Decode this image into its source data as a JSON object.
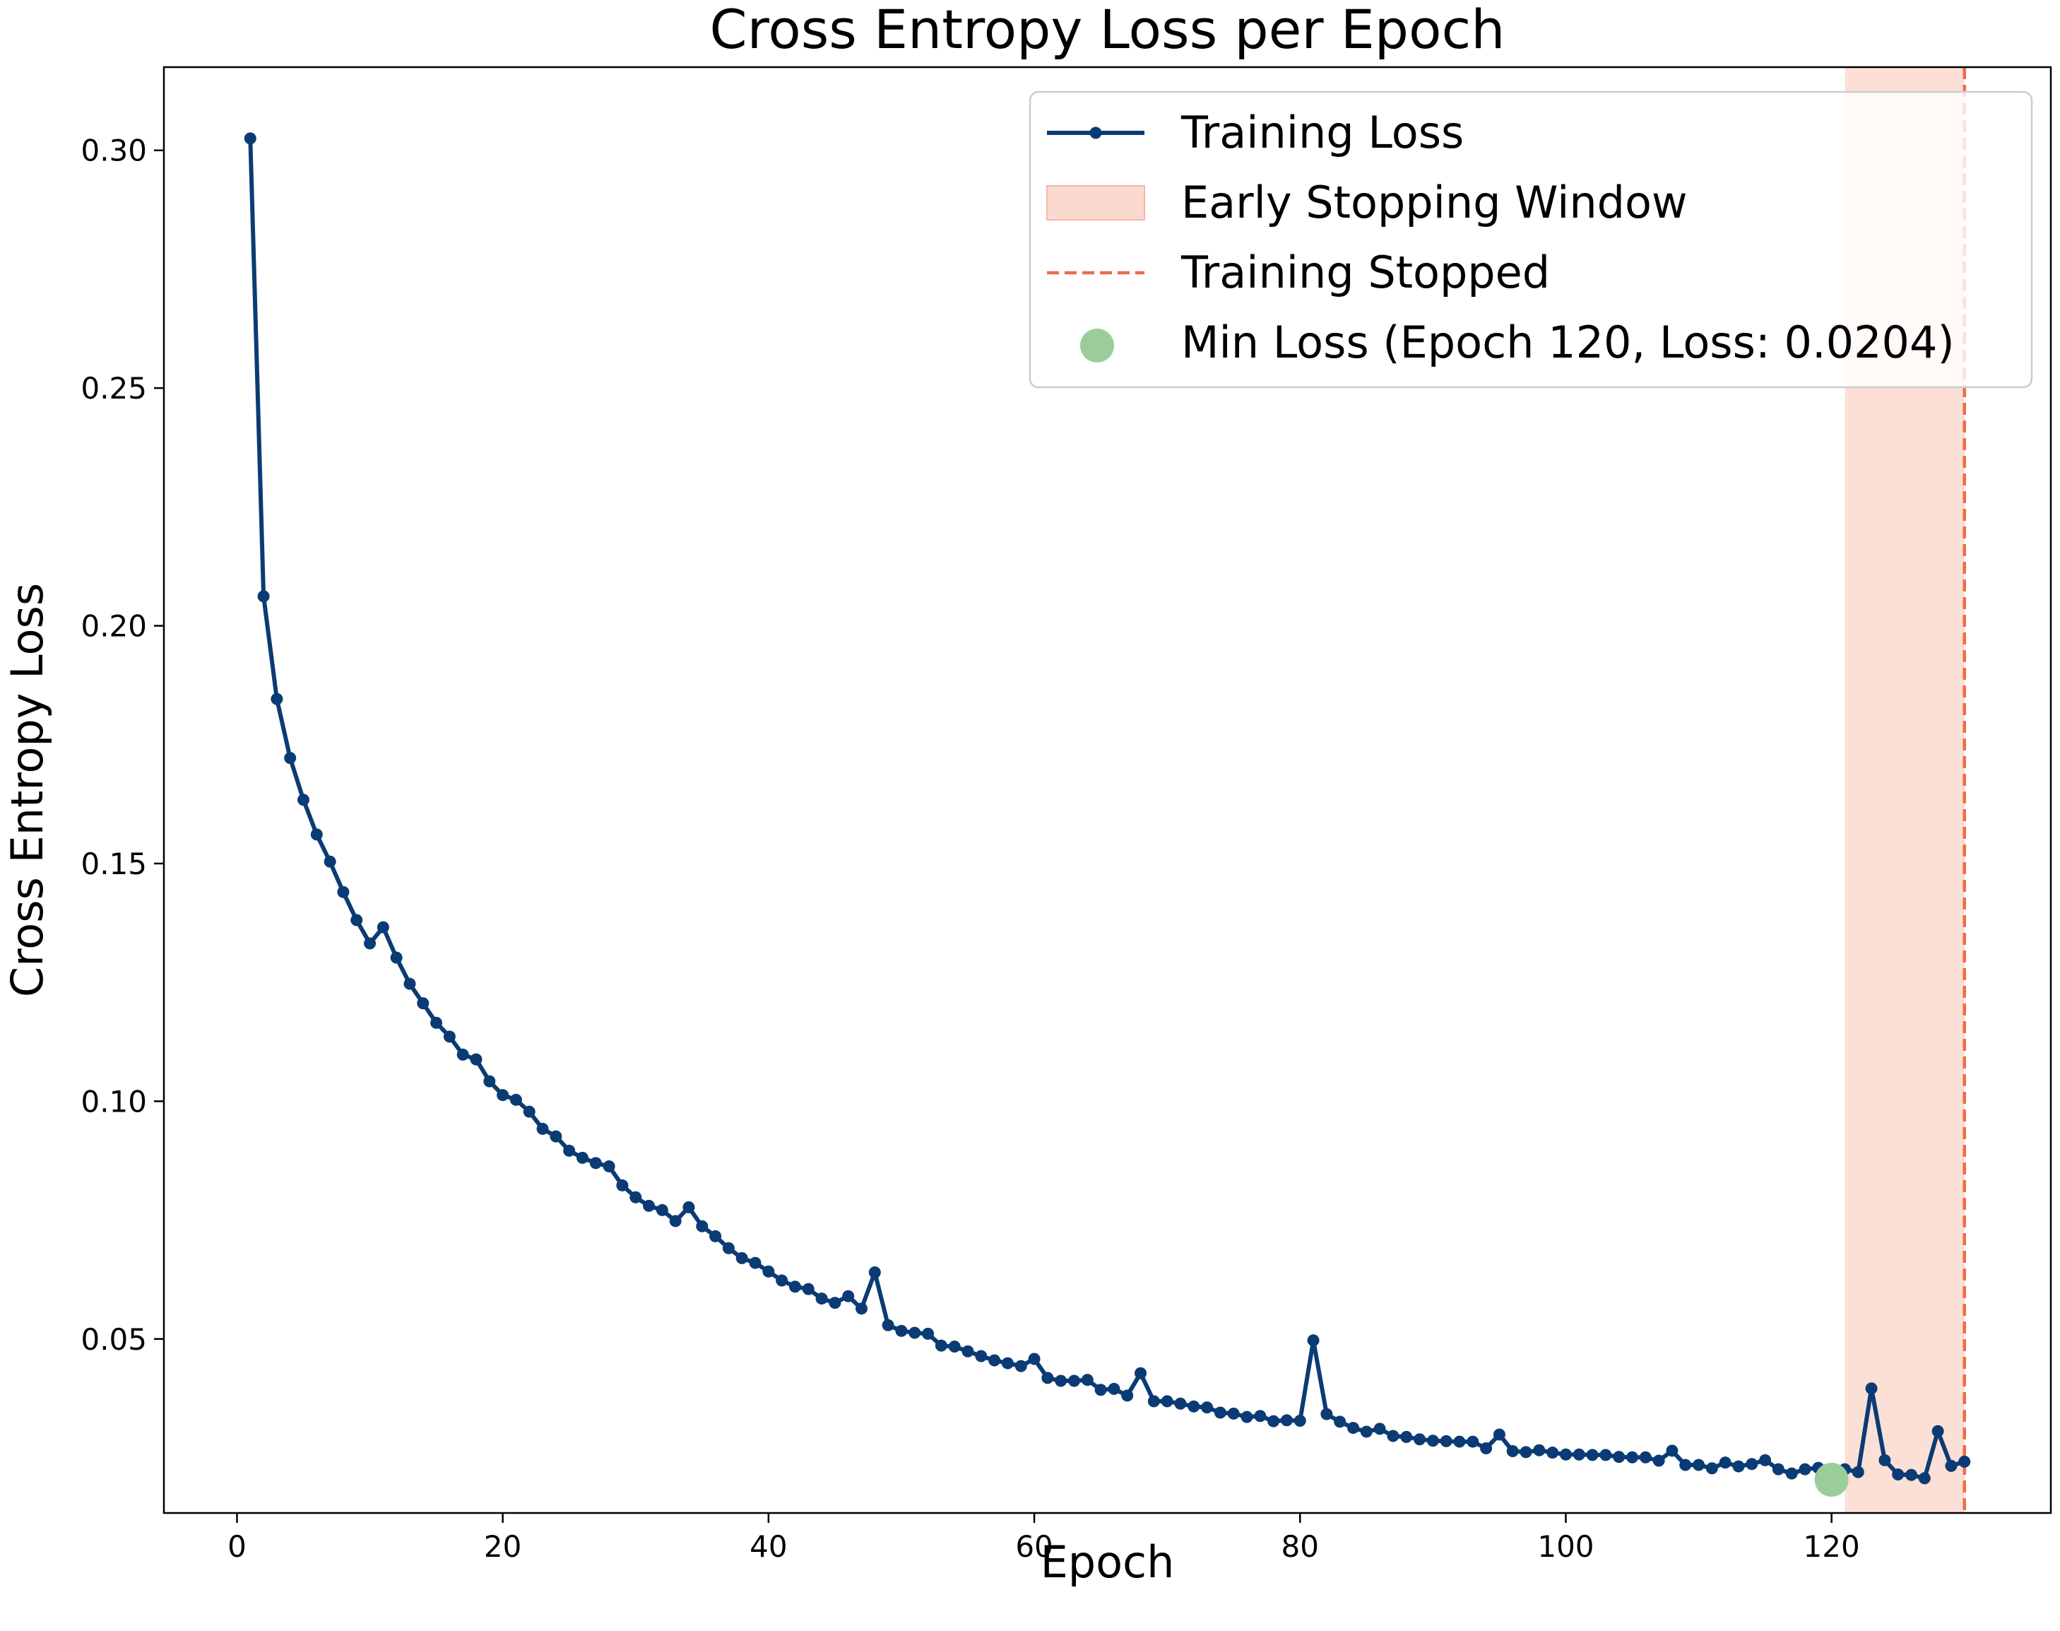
{
  "chart_data": {
    "type": "line",
    "title": "Cross Entropy Loss per Epoch",
    "xlabel": "Epoch",
    "ylabel": "Cross Entropy Loss",
    "xlim": [
      -5.5,
      136.5
    ],
    "ylim": [
      0.0134,
      0.3175
    ],
    "xticks": [
      0,
      20,
      40,
      60,
      80,
      100,
      120
    ],
    "xtick_labels": [
      "0",
      "20",
      "40",
      "60",
      "80",
      "100",
      "120"
    ],
    "yticks": [
      0.05,
      0.1,
      0.15,
      0.2,
      0.25,
      0.3
    ],
    "ytick_labels": [
      "0.05",
      "0.10",
      "0.15",
      "0.20",
      "0.25",
      "0.30"
    ],
    "grid": false,
    "legend_position": "top-right",
    "series": [
      {
        "name": "Training Loss",
        "color": "#0b3b74",
        "x": [
          1,
          2,
          3,
          4,
          5,
          6,
          7,
          8,
          9,
          10,
          11,
          12,
          13,
          14,
          15,
          16,
          17,
          18,
          19,
          20,
          21,
          22,
          23,
          24,
          25,
          26,
          27,
          28,
          29,
          30,
          31,
          32,
          33,
          34,
          35,
          36,
          37,
          38,
          39,
          40,
          41,
          42,
          43,
          44,
          45,
          46,
          47,
          48,
          49,
          50,
          51,
          52,
          53,
          54,
          55,
          56,
          57,
          58,
          59,
          60,
          61,
          62,
          63,
          64,
          65,
          66,
          67,
          68,
          69,
          70,
          71,
          72,
          73,
          74,
          75,
          76,
          77,
          78,
          79,
          80,
          81,
          82,
          83,
          84,
          85,
          86,
          87,
          88,
          89,
          90,
          91,
          92,
          93,
          94,
          95,
          96,
          97,
          98,
          99,
          100,
          101,
          102,
          103,
          104,
          105,
          106,
          107,
          108,
          109,
          110,
          111,
          112,
          113,
          114,
          115,
          116,
          117,
          118,
          119,
          120,
          121,
          122,
          123,
          124,
          125,
          126,
          127,
          128,
          129,
          130
        ],
        "y": [
          0.3025,
          0.2062,
          0.1846,
          0.1722,
          0.1634,
          0.1561,
          0.1504,
          0.144,
          0.1381,
          0.1332,
          0.1366,
          0.1302,
          0.1247,
          0.1206,
          0.1165,
          0.1136,
          0.1098,
          0.1088,
          0.1042,
          0.1013,
          0.1003,
          0.0978,
          0.0942,
          0.0926,
          0.0896,
          0.0881,
          0.087,
          0.0863,
          0.0823,
          0.0798,
          0.078,
          0.0771,
          0.0748,
          0.0777,
          0.0737,
          0.0716,
          0.0691,
          0.067,
          0.066,
          0.0642,
          0.0623,
          0.061,
          0.0605,
          0.0585,
          0.0576,
          0.059,
          0.0564,
          0.064,
          0.0529,
          0.0517,
          0.0513,
          0.0511,
          0.0486,
          0.0484,
          0.0474,
          0.0464,
          0.0455,
          0.0449,
          0.0443,
          0.0458,
          0.0418,
          0.0412,
          0.0412,
          0.0414,
          0.0393,
          0.0395,
          0.0381,
          0.0428,
          0.0369,
          0.0369,
          0.0364,
          0.0358,
          0.0356,
          0.0345,
          0.0343,
          0.0336,
          0.0338,
          0.0327,
          0.0329,
          0.0328,
          0.0497,
          0.0342,
          0.0326,
          0.0313,
          0.0305,
          0.0311,
          0.0296,
          0.0294,
          0.0289,
          0.0286,
          0.0285,
          0.0284,
          0.0284,
          0.027,
          0.0299,
          0.0264,
          0.0262,
          0.0266,
          0.0261,
          0.0257,
          0.0257,
          0.0256,
          0.0256,
          0.0252,
          0.0251,
          0.0251,
          0.0244,
          0.0265,
          0.0235,
          0.0235,
          0.0228,
          0.024,
          0.0232,
          0.0237,
          0.0245,
          0.0226,
          0.0217,
          0.0226,
          0.0229,
          0.0204,
          0.0226,
          0.022,
          0.0396,
          0.0245,
          0.0215,
          0.0214,
          0.0207,
          0.0306,
          0.0233,
          0.0242
        ]
      }
    ],
    "early_stopping_window": {
      "x_start": 121,
      "x_end": 130,
      "color": "#fcd9cf"
    },
    "stop_line": {
      "x": 130,
      "color": "#ee6c4d"
    },
    "min_point": {
      "x": 120,
      "y": 0.0204,
      "color": "#9acd9a"
    },
    "legend": [
      {
        "label": "Training Loss",
        "kind": "line"
      },
      {
        "label": "Early Stopping Window",
        "kind": "patch"
      },
      {
        "label": "Training Stopped",
        "kind": "dashed"
      },
      {
        "label": "Min Loss (Epoch 120, Loss: 0.0204)",
        "kind": "marker"
      }
    ]
  }
}
